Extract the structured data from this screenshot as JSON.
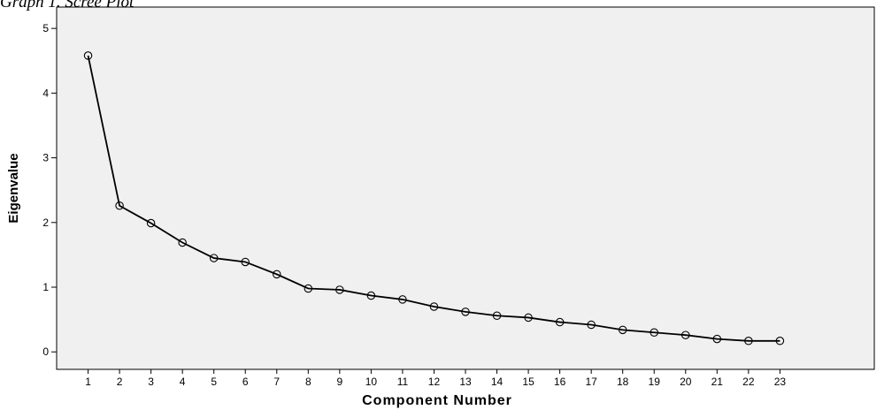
{
  "caption": "Graph 1. Scree Plot",
  "chart_data": {
    "type": "line",
    "title": "",
    "xlabel": "Component Number",
    "ylabel": "Eigenvalue",
    "x": [
      1,
      2,
      3,
      4,
      5,
      6,
      7,
      8,
      9,
      10,
      11,
      12,
      13,
      14,
      15,
      16,
      17,
      18,
      19,
      20,
      21,
      22,
      23
    ],
    "x_tick_labels": [
      "1",
      "2",
      "3",
      "4",
      "5",
      "6",
      "7",
      "8",
      "9",
      "10",
      "11",
      "12",
      "13",
      "14",
      "15",
      "16",
      "17",
      "18",
      "19",
      "20",
      "21",
      "22",
      "23"
    ],
    "y_tick_labels": [
      "0",
      "1",
      "2",
      "3",
      "4",
      "5"
    ],
    "y_ticks": [
      0,
      1,
      2,
      3,
      4,
      5
    ],
    "series": [
      {
        "values": [
          4.58,
          2.26,
          1.99,
          1.69,
          1.45,
          1.39,
          1.2,
          0.98,
          0.96,
          0.87,
          0.81,
          0.7,
          0.62,
          0.56,
          0.53,
          0.46,
          0.42,
          0.34,
          0.3,
          0.26,
          0.2,
          0.17,
          0.17
        ],
        "marker": "open-circle",
        "color": "#000000"
      }
    ],
    "xlim": [
      0,
      26
    ],
    "ylim": [
      -0.27,
      5.33
    ],
    "grid": false,
    "legend": "none",
    "plot_background": "#f0f0f0"
  }
}
